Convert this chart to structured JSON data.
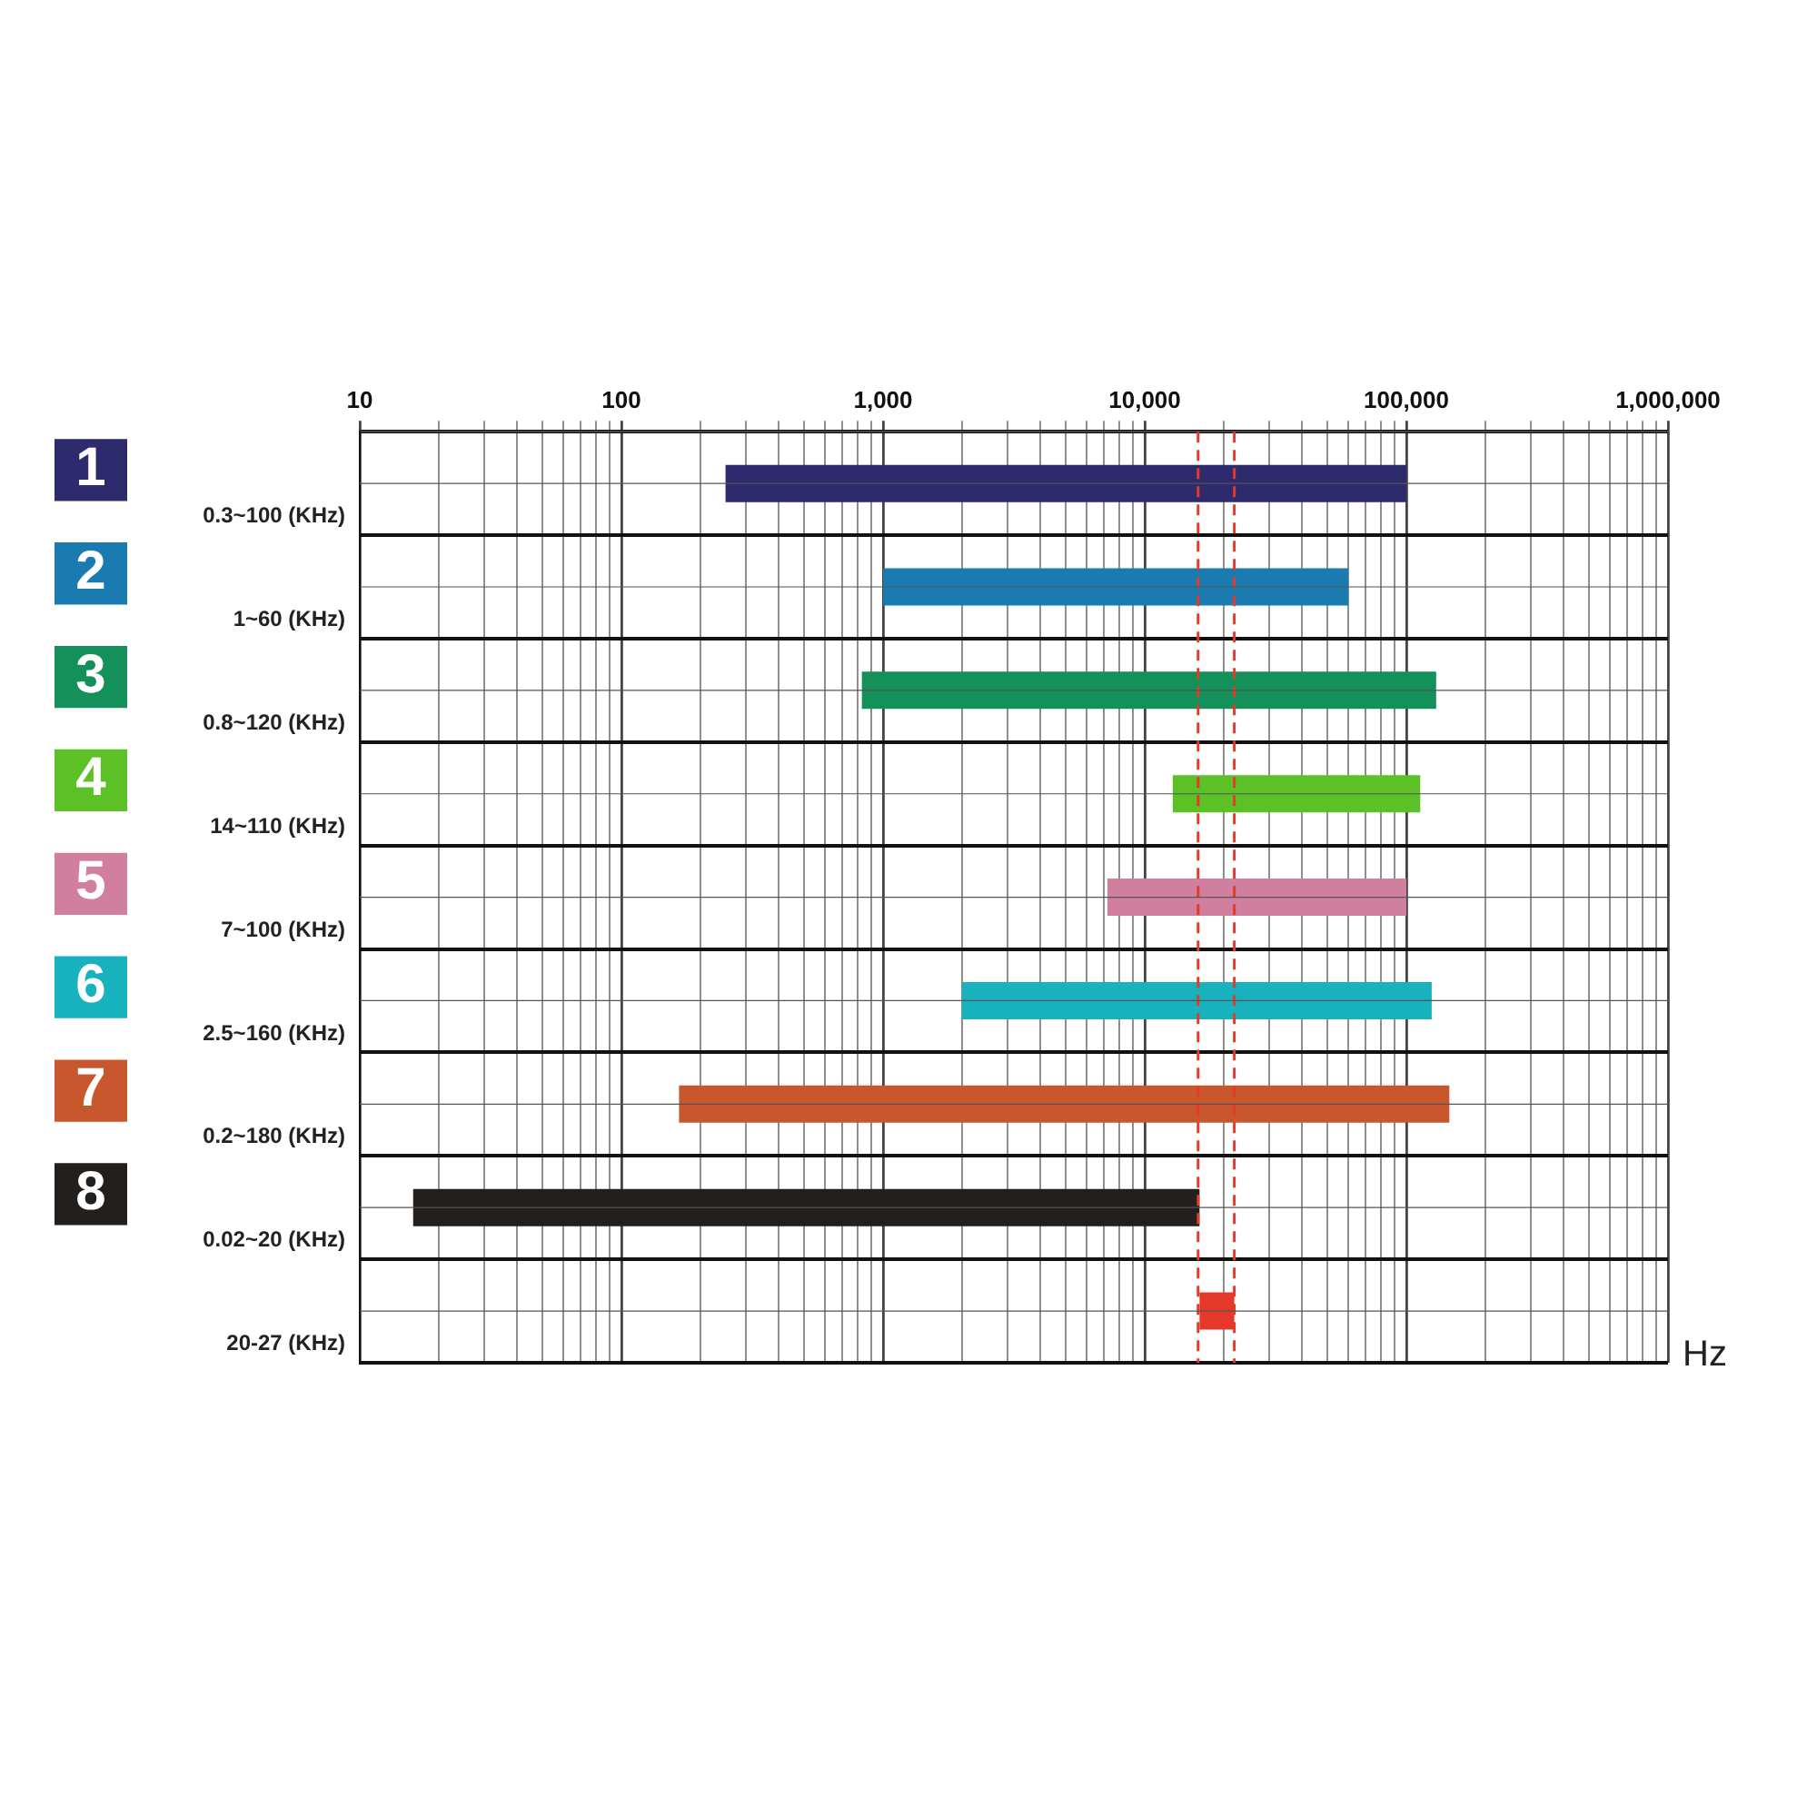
{
  "chart_data": {
    "type": "bar",
    "orientation": "horizontal",
    "log": "x",
    "xlabel": "Hz",
    "categories": [
      "0.3~100 (KHz)",
      "1~60 (KHz)",
      "0.8~120 (KHz)",
      "14~110 (KHz)",
      "7~100 (KHz)",
      "2.5~160 (KHz)",
      "0.2~180 (KHz)",
      "0.02~20 (KHz)",
      "20-27 (KHz)"
    ],
    "annotations": [
      "1",
      "2",
      "3",
      "4",
      "5",
      "6",
      "7",
      "8"
    ],
    "base": [
      250,
      1000,
      830,
      12800,
      7200,
      2000,
      166,
      16,
      16200
    ],
    "values": [
      99750,
      59000,
      129170,
      100200,
      92800,
      123000,
      145834,
      16184,
      5800
    ],
    "colors": [
      "#2e2a6e",
      "#1a7bb0",
      "#14905a",
      "#5cc126",
      "#d07f9f",
      "#18b2bf",
      "#c8572e",
      "#231f1c",
      "#e53a2a"
    ],
    "xlim": [
      10,
      1000000
    ],
    "xticks": [
      {
        "value": 10,
        "label": "10"
      },
      {
        "value": 20,
        "label": null
      },
      {
        "value": 30,
        "label": null
      },
      {
        "value": 40,
        "label": null
      },
      {
        "value": 50,
        "label": null
      },
      {
        "value": 60,
        "label": null
      },
      {
        "value": 70,
        "label": null
      },
      {
        "value": 80,
        "label": null
      },
      {
        "value": 90,
        "label": null
      },
      {
        "value": 100,
        "label": "100"
      },
      {
        "value": 200,
        "label": null
      },
      {
        "value": 300,
        "label": null
      },
      {
        "value": 400,
        "label": null
      },
      {
        "value": 500,
        "label": null
      },
      {
        "value": 600,
        "label": null
      },
      {
        "value": 700,
        "label": null
      },
      {
        "value": 800,
        "label": null
      },
      {
        "value": 900,
        "label": null
      },
      {
        "value": 1000,
        "label": "1,000"
      },
      {
        "value": 2000,
        "label": null
      },
      {
        "value": 3000,
        "label": null
      },
      {
        "value": 4000,
        "label": null
      },
      {
        "value": 5000,
        "label": null
      },
      {
        "value": 6000,
        "label": null
      },
      {
        "value": 7000,
        "label": null
      },
      {
        "value": 8000,
        "label": null
      },
      {
        "value": 9000,
        "label": null
      },
      {
        "value": 10000,
        "label": "10,000"
      },
      {
        "value": 20000,
        "label": null
      },
      {
        "value": 30000,
        "label": null
      },
      {
        "value": 40000,
        "label": null
      },
      {
        "value": 50000,
        "label": null
      },
      {
        "value": 60000,
        "label": null
      },
      {
        "value": 70000,
        "label": null
      },
      {
        "value": 80000,
        "label": null
      },
      {
        "value": 90000,
        "label": null
      },
      {
        "value": 100000,
        "label": "100,000"
      },
      {
        "value": 200000,
        "label": null
      },
      {
        "value": 300000,
        "label": null
      },
      {
        "value": 400000,
        "label": null
      },
      {
        "value": 500000,
        "label": null
      },
      {
        "value": 600000,
        "label": null
      },
      {
        "value": 700000,
        "label": null
      },
      {
        "value": 800000,
        "label": null
      },
      {
        "value": 900000,
        "label": null
      },
      {
        "value": 1000000,
        "label": "1,000,000"
      }
    ],
    "ref_lines": [
      {
        "axis": "x",
        "value": 16000,
        "color": "#e53a2a",
        "line_style": "dashed"
      },
      {
        "axis": "x",
        "value": 22000,
        "color": "#e53a2a",
        "line_style": "dashed"
      }
    ],
    "grid": true,
    "legend": false
  }
}
